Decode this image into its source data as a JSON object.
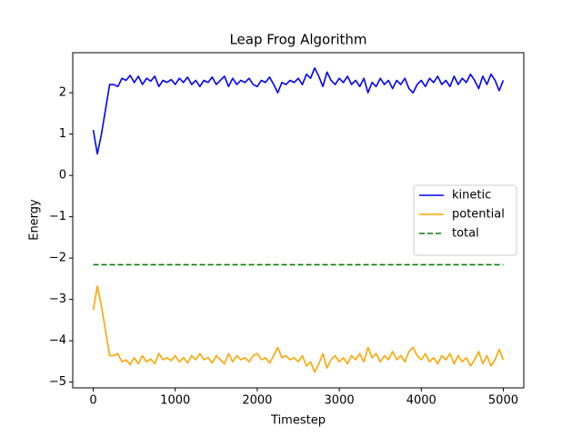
{
  "chart_data": {
    "type": "line",
    "title": "Leap Frog Algorithm",
    "xlabel": "Timestep",
    "ylabel": "Energy",
    "x": [
      0,
      50,
      100,
      150,
      200,
      250,
      300,
      350,
      400,
      450,
      500,
      550,
      600,
      650,
      700,
      750,
      800,
      850,
      900,
      950,
      1000,
      1050,
      1100,
      1150,
      1200,
      1250,
      1300,
      1350,
      1400,
      1450,
      1500,
      1550,
      1600,
      1650,
      1700,
      1750,
      1800,
      1850,
      1900,
      1950,
      2000,
      2050,
      2100,
      2150,
      2200,
      2250,
      2300,
      2350,
      2400,
      2450,
      2500,
      2550,
      2600,
      2650,
      2700,
      2750,
      2800,
      2850,
      2900,
      2950,
      3000,
      3050,
      3100,
      3150,
      3200,
      3250,
      3300,
      3350,
      3400,
      3450,
      3500,
      3550,
      3600,
      3650,
      3700,
      3750,
      3800,
      3850,
      3900,
      3950,
      4000,
      4050,
      4100,
      4150,
      4200,
      4250,
      4300,
      4350,
      4400,
      4450,
      4500,
      4550,
      4600,
      4650,
      4700,
      4750,
      4800,
      4850,
      4900,
      4950,
      5000
    ],
    "series": [
      {
        "name": "kinetic",
        "color": "#0000ff",
        "linestyle": "solid",
        "values": [
          1.1,
          0.52,
          1.0,
          1.6,
          2.2,
          2.2,
          2.15,
          2.35,
          2.3,
          2.42,
          2.25,
          2.4,
          2.2,
          2.35,
          2.28,
          2.4,
          2.15,
          2.3,
          2.25,
          2.32,
          2.2,
          2.35,
          2.25,
          2.38,
          2.2,
          2.3,
          2.15,
          2.3,
          2.25,
          2.38,
          2.2,
          2.3,
          2.4,
          2.15,
          2.35,
          2.2,
          2.3,
          2.25,
          2.35,
          2.2,
          2.15,
          2.3,
          2.25,
          2.38,
          2.2,
          2.0,
          2.25,
          2.2,
          2.3,
          2.25,
          2.35,
          2.2,
          2.45,
          2.35,
          2.6,
          2.4,
          2.15,
          2.5,
          2.3,
          2.2,
          2.35,
          2.25,
          2.4,
          2.2,
          2.3,
          2.15,
          2.35,
          2.0,
          2.25,
          2.15,
          2.35,
          2.2,
          2.3,
          2.1,
          2.3,
          2.2,
          2.35,
          2.1,
          2.0,
          2.2,
          2.3,
          2.15,
          2.35,
          2.25,
          2.4,
          2.2,
          2.3,
          2.15,
          2.4,
          2.2,
          2.35,
          2.25,
          2.45,
          2.3,
          2.1,
          2.4,
          2.2,
          2.45,
          2.3,
          2.05,
          2.3
        ]
      },
      {
        "name": "potential",
        "color": "#ffa500",
        "linestyle": "solid",
        "values": [
          -3.26,
          -2.68,
          -3.16,
          -3.76,
          -4.36,
          -4.36,
          -4.31,
          -4.51,
          -4.46,
          -4.58,
          -4.41,
          -4.56,
          -4.36,
          -4.51,
          -4.44,
          -4.56,
          -4.31,
          -4.46,
          -4.41,
          -4.48,
          -4.36,
          -4.51,
          -4.41,
          -4.54,
          -4.36,
          -4.46,
          -4.31,
          -4.46,
          -4.41,
          -4.54,
          -4.36,
          -4.46,
          -4.56,
          -4.31,
          -4.51,
          -4.36,
          -4.46,
          -4.41,
          -4.51,
          -4.36,
          -4.31,
          -4.46,
          -4.41,
          -4.54,
          -4.36,
          -4.16,
          -4.41,
          -4.36,
          -4.46,
          -4.41,
          -4.51,
          -4.36,
          -4.61,
          -4.51,
          -4.76,
          -4.56,
          -4.31,
          -4.66,
          -4.46,
          -4.36,
          -4.51,
          -4.41,
          -4.56,
          -4.36,
          -4.46,
          -4.31,
          -4.51,
          -4.16,
          -4.41,
          -4.31,
          -4.51,
          -4.36,
          -4.46,
          -4.26,
          -4.46,
          -4.36,
          -4.51,
          -4.26,
          -4.16,
          -4.36,
          -4.46,
          -4.31,
          -4.51,
          -4.41,
          -4.56,
          -4.36,
          -4.46,
          -4.31,
          -4.56,
          -4.36,
          -4.51,
          -4.41,
          -4.61,
          -4.46,
          -4.26,
          -4.56,
          -4.36,
          -4.61,
          -4.46,
          -4.21,
          -4.46
        ]
      },
      {
        "name": "total",
        "color": "#008000",
        "linestyle": "dashed",
        "x": [
          0,
          5000
        ],
        "values": [
          -2.16,
          -2.16
        ]
      }
    ],
    "xlim": [
      -250,
      5250
    ],
    "xticks": [
      0,
      1000,
      2000,
      3000,
      4000,
      5000
    ],
    "ylim": [
      -5.14,
      2.97
    ],
    "yticks": [
      {
        "value": -5,
        "label": "−5"
      },
      {
        "value": -4,
        "label": "−4"
      },
      {
        "value": -3,
        "label": "−3"
      },
      {
        "value": -2,
        "label": "−2"
      },
      {
        "value": -1,
        "label": "−1"
      },
      0,
      1,
      2
    ],
    "legend": "center right",
    "grid": false
  }
}
